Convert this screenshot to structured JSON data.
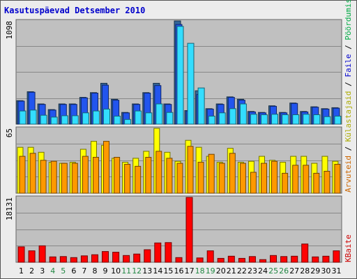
{
  "chart_data": [
    {
      "type": "bar",
      "title": "Kasutuspäevad Detsember 2010",
      "categories": [
        "1",
        "2",
        "3",
        "4",
        "5",
        "6",
        "7",
        "8",
        "9",
        "10",
        "11",
        "12",
        "13",
        "14",
        "15",
        "16",
        "17",
        "18",
        "19",
        "20",
        "21",
        "22",
        "23",
        "24",
        "25",
        "26",
        "27",
        "28",
        "29",
        "30",
        "31"
      ],
      "weekend_days": [
        "4",
        "5",
        "11",
        "12",
        "18",
        "19",
        "25",
        "26"
      ],
      "ymax_label": "1098",
      "ylim": [
        0,
        1098
      ],
      "legend": [
        "Pöördumisi",
        "Faile",
        "Külastajaid"
      ],
      "legend_colors": [
        "#00aa44",
        "#0000cc",
        "#aaaa00"
      ],
      "series": [
        {
          "name": "Pöördumisi",
          "color": "#336699",
          "values": [
            250,
            345,
            215,
            155,
            215,
            215,
            285,
            335,
            435,
            265,
            125,
            215,
            335,
            435,
            215,
            1098,
            145,
            355,
            165,
            215,
            290,
            265,
            135,
            125,
            195,
            125,
            225,
            135,
            185,
            165,
            175
          ]
        },
        {
          "name": "Faile",
          "color": "#2255ee",
          "values": [
            245,
            340,
            210,
            150,
            210,
            210,
            280,
            330,
            415,
            255,
            120,
            210,
            330,
            410,
            210,
            1060,
            140,
            315,
            160,
            210,
            285,
            255,
            130,
            120,
            190,
            120,
            220,
            130,
            180,
            160,
            170
          ]
        },
        {
          "name": "Külastajaid",
          "color": "#33ddff",
          "values": [
            140,
            150,
            95,
            75,
            90,
            90,
            120,
            140,
            160,
            85,
            50,
            140,
            120,
            215,
            125,
            1040,
            860,
            385,
            85,
            120,
            165,
            215,
            105,
            100,
            105,
            100,
            100,
            105,
            100,
            80,
            85
          ]
        }
      ]
    },
    {
      "type": "bar",
      "ymax_label": "65",
      "ylim": [
        0,
        65
      ],
      "legend": [
        "Arvuteid"
      ],
      "legend_colors": [
        "#cc6600"
      ],
      "series": [
        {
          "name": "Külastajaid",
          "color": "#ffff00",
          "values": [
            46,
            46,
            41,
            31,
            30,
            31,
            44,
            52,
            48,
            35,
            31,
            35,
            42,
            65,
            41,
            32,
            53,
            46,
            37,
            31,
            45,
            31,
            32,
            37,
            33,
            31,
            37,
            37,
            30,
            37,
            32
          ]
        },
        {
          "name": "Arvuteid",
          "color": "#ff9900",
          "values": [
            37,
            40,
            33,
            32,
            30,
            30,
            37,
            36,
            52,
            36,
            29,
            27,
            36,
            42,
            35,
            30,
            47,
            31,
            39,
            30,
            40,
            30,
            21,
            30,
            32,
            20,
            28,
            28,
            20,
            22,
            29
          ]
        }
      ]
    },
    {
      "type": "bar",
      "ymax_label": "18131",
      "ylim": [
        0,
        18131
      ],
      "legend": [
        "KBaite"
      ],
      "legend_colors": [
        "#cc0000"
      ],
      "series": [
        {
          "name": "KBaite",
          "color": "#ff0000",
          "values": [
            4300,
            3200,
            4600,
            1500,
            1600,
            1300,
            1800,
            2100,
            3000,
            2800,
            1900,
            2300,
            3500,
            5400,
            5500,
            1300,
            18131,
            1200,
            3200,
            1100,
            1700,
            1100,
            1600,
            750,
            1900,
            1600,
            1700,
            5100,
            1500,
            1700,
            3200
          ]
        }
      ]
    }
  ],
  "legend_separator": " / "
}
